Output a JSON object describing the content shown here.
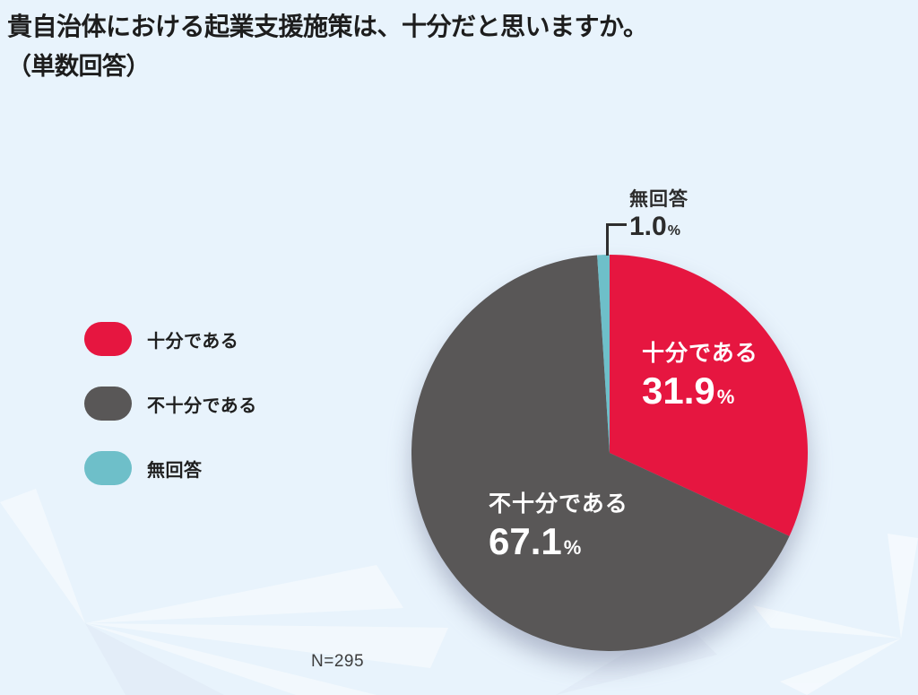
{
  "header": {
    "title": "貴自治体における起業支援施策は、十分だと思いますか。",
    "subtitle": "（単数回答）"
  },
  "legend": {
    "items": [
      {
        "label": "十分である",
        "color": "#e61640"
      },
      {
        "label": "不十分である",
        "color": "#595757"
      },
      {
        "label": "無回答",
        "color": "#6ebfc9"
      }
    ]
  },
  "chart_data": {
    "type": "pie",
    "title": "貴自治体における起業支援施策は、十分だと思いますか。（単数回答）",
    "categories": [
      "十分である",
      "不十分である",
      "無回答"
    ],
    "values": [
      31.9,
      67.1,
      1.0
    ],
    "unit": "%",
    "sample_size_label": "N=295",
    "start_angle": "12-oclock",
    "direction": "clockwise",
    "legend_position": "left",
    "background_color": "#e8f3fc",
    "slices": [
      {
        "label": "十分である",
        "value": 31.9,
        "display": "31.9",
        "unit": "%",
        "color": "#e61640",
        "text_color": "#ffffff",
        "label_placement": "inside"
      },
      {
        "label": "不十分である",
        "value": 67.1,
        "display": "67.1",
        "unit": "%",
        "color": "#595757",
        "text_color": "#ffffff",
        "label_placement": "inside"
      },
      {
        "label": "無回答",
        "value": 1.0,
        "display": "1.0",
        "unit": "%",
        "color": "#6ebfc9",
        "text_color": "#2c2c2c",
        "label_placement": "callout"
      }
    ]
  },
  "footnote": {
    "text": "N=295"
  }
}
